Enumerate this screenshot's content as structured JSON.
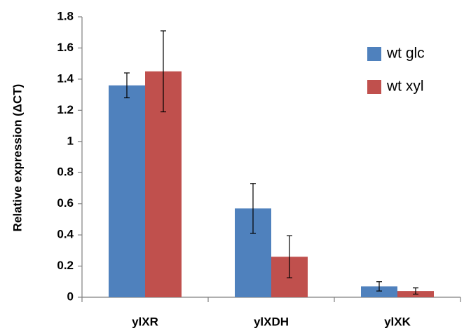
{
  "chart_data": {
    "type": "bar",
    "title": "",
    "xlabel": "",
    "ylabel": "Relative expression (ΔCT)",
    "categories": [
      "ylXR",
      "ylXDH",
      "ylXK"
    ],
    "series": [
      {
        "name": "wt glc",
        "color": "#4f81bd",
        "values": [
          1.36,
          0.57,
          0.07
        ],
        "error": [
          0.08,
          0.16,
          0.03
        ]
      },
      {
        "name": "wt xyl",
        "color": "#c0504d",
        "values": [
          1.45,
          0.26,
          0.04
        ],
        "error": [
          0.26,
          0.135,
          0.02
        ]
      }
    ],
    "ylim": [
      0,
      1.8
    ],
    "yticks": [
      "0",
      "0.2",
      "0.4",
      "0.6",
      "0.8",
      "1",
      "1.2",
      "1.4",
      "1.6",
      "1.8"
    ],
    "grid": false,
    "legend_position": "top-right"
  }
}
